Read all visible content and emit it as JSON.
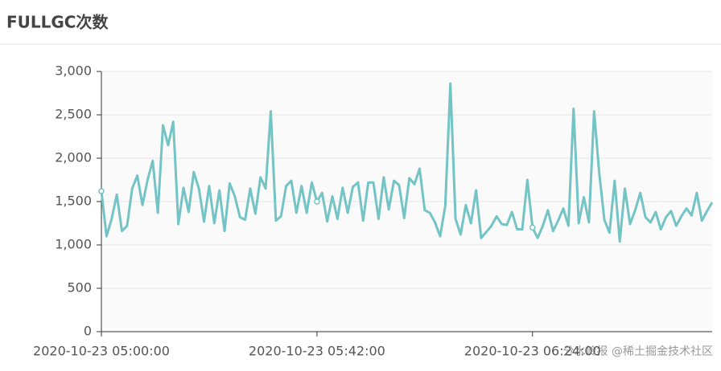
{
  "chart_data": {
    "type": "line",
    "title": "FULLGC次数",
    "categories": [
      "2020-10-23 05:00:00",
      null,
      null,
      null,
      null,
      null,
      null,
      null,
      null,
      null,
      null,
      null,
      null,
      null,
      null,
      null,
      null,
      null,
      null,
      null,
      null,
      null,
      null,
      null,
      null,
      null,
      null,
      null,
      null,
      null,
      null,
      null,
      null,
      null,
      null,
      null,
      null,
      null,
      null,
      null,
      null,
      null,
      "2020-10-23 05:42:00",
      null,
      null,
      null,
      null,
      null,
      null,
      null,
      null,
      null,
      null,
      null,
      null,
      null,
      null,
      null,
      null,
      null,
      null,
      null,
      null,
      null,
      null,
      null,
      null,
      null,
      null,
      null,
      null,
      null,
      null,
      null,
      null,
      null,
      null,
      null,
      null,
      null,
      null,
      null,
      null,
      null,
      "2020-10-23 06:24:00",
      null,
      null,
      null,
      null,
      null,
      null,
      null,
      null,
      null,
      null,
      null,
      null,
      null,
      null,
      null,
      null,
      null,
      null,
      null,
      null,
      null,
      null,
      null,
      null,
      null,
      null,
      null,
      null,
      null,
      null,
      null,
      null,
      null,
      null,
      null
    ],
    "series": [
      {
        "name": "FULLGC次数",
        "color": "#74c4c6",
        "values": [
          1620,
          1100,
          1300,
          1580,
          1160,
          1220,
          1650,
          1800,
          1460,
          1750,
          1970,
          1370,
          2380,
          2150,
          2420,
          1240,
          1660,
          1380,
          1840,
          1650,
          1270,
          1680,
          1250,
          1630,
          1160,
          1710,
          1560,
          1320,
          1290,
          1650,
          1360,
          1780,
          1650,
          2540,
          1280,
          1330,
          1680,
          1740,
          1370,
          1680,
          1370,
          1720,
          1500,
          1600,
          1270,
          1560,
          1300,
          1660,
          1370,
          1670,
          1720,
          1280,
          1720,
          1720,
          1300,
          1780,
          1410,
          1740,
          1690,
          1310,
          1770,
          1700,
          1880,
          1400,
          1370,
          1260,
          1100,
          1450,
          2860,
          1300,
          1120,
          1460,
          1250,
          1630,
          1080,
          1150,
          1220,
          1330,
          1240,
          1230,
          1380,
          1180,
          1180,
          1750,
          1200,
          1080,
          1220,
          1400,
          1160,
          1280,
          1420,
          1220,
          2570,
          1250,
          1550,
          1260,
          2540,
          1830,
          1290,
          1140,
          1740,
          1040,
          1650,
          1240,
          1400,
          1600,
          1320,
          1260,
          1380,
          1180,
          1320,
          1390,
          1220,
          1330,
          1420,
          1340,
          1600,
          1280,
          1390,
          1490
        ]
      }
    ],
    "ylim": [
      0,
      3000
    ],
    "yticks": [
      0,
      500,
      {
        "value": 1000,
        "label": "1,000"
      },
      {
        "value": 1500,
        "label": "1,500"
      },
      {
        "value": 2000,
        "label": "2,000"
      },
      {
        "value": 2500,
        "label": "2,500"
      },
      {
        "value": 3000,
        "label": "3,000"
      }
    ],
    "grid": true,
    "watermark": "分水岭报 @稀土掘金技术社区"
  }
}
